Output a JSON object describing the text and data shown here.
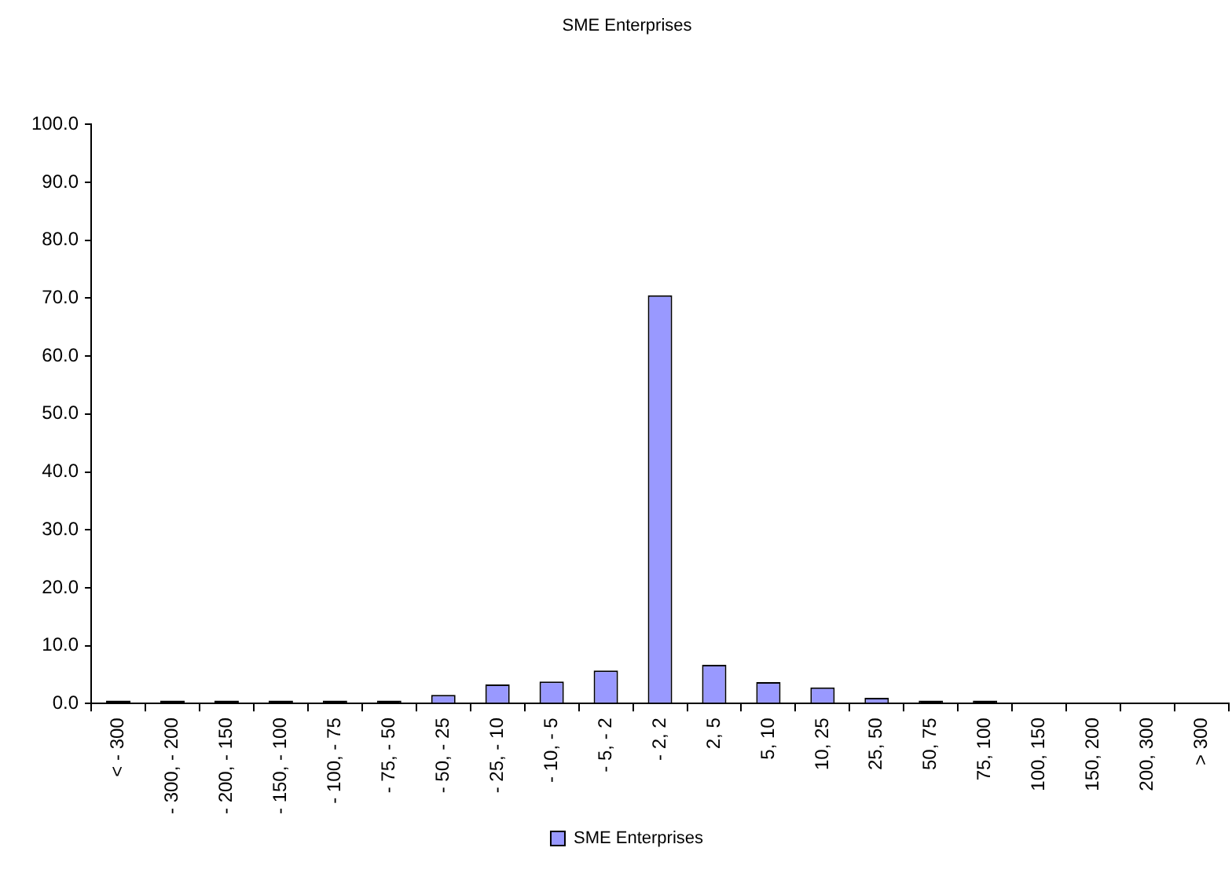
{
  "chart_data": {
    "type": "bar",
    "title": "SME Enterprises",
    "categories": [
      "< - 300",
      "- 300, - 200",
      "- 200, - 150",
      "- 150, - 100",
      "- 100, - 75",
      "- 75, - 50",
      "- 50, - 25",
      "- 25, - 10",
      "- 10, - 5",
      "- 5, - 2",
      "- 2, 2",
      "2, 5",
      "5, 10",
      "10, 25",
      "25, 50",
      "50, 75",
      "75, 100",
      "100, 150",
      "150, 200",
      "200, 300",
      "> 300"
    ],
    "series": [
      {
        "name": "SME Enterprises",
        "color": "#9999ff",
        "colors": [
          "#000000",
          "#000000",
          "#000000",
          "#000000",
          "#000000",
          "#000000",
          "#9999ff",
          "#9999ff",
          "#9999ff",
          "#9999ff",
          "#9999ff",
          "#9999ff",
          "#9999ff",
          "#9999ff",
          "#9999ff",
          "#000000",
          "#000000",
          "#9999ff",
          "#9999ff",
          "#9999ff",
          "#9999ff"
        ],
        "values": [
          0.5,
          0.5,
          0.5,
          0.5,
          0.5,
          0.5,
          1.5,
          3.3,
          3.8,
          5.7,
          70.5,
          6.7,
          3.7,
          2.8,
          1.0,
          0.5,
          0.5,
          0,
          0,
          0,
          0
        ]
      }
    ],
    "ylim": [
      0,
      100
    ],
    "yticks": [
      {
        "value": 0,
        "label": "0.0"
      },
      {
        "value": 10,
        "label": "10.0"
      },
      {
        "value": 20,
        "label": "20.0"
      },
      {
        "value": 30,
        "label": "30.0"
      },
      {
        "value": 40,
        "label": "40.0"
      },
      {
        "value": 50,
        "label": "50.0"
      },
      {
        "value": 60,
        "label": "60.0"
      },
      {
        "value": 70,
        "label": "70.0"
      },
      {
        "value": 80,
        "label": "80.0"
      },
      {
        "value": 90,
        "label": "90.0"
      },
      {
        "value": 100,
        "label": "100.0"
      }
    ],
    "grid": false,
    "legend": "bottom"
  }
}
